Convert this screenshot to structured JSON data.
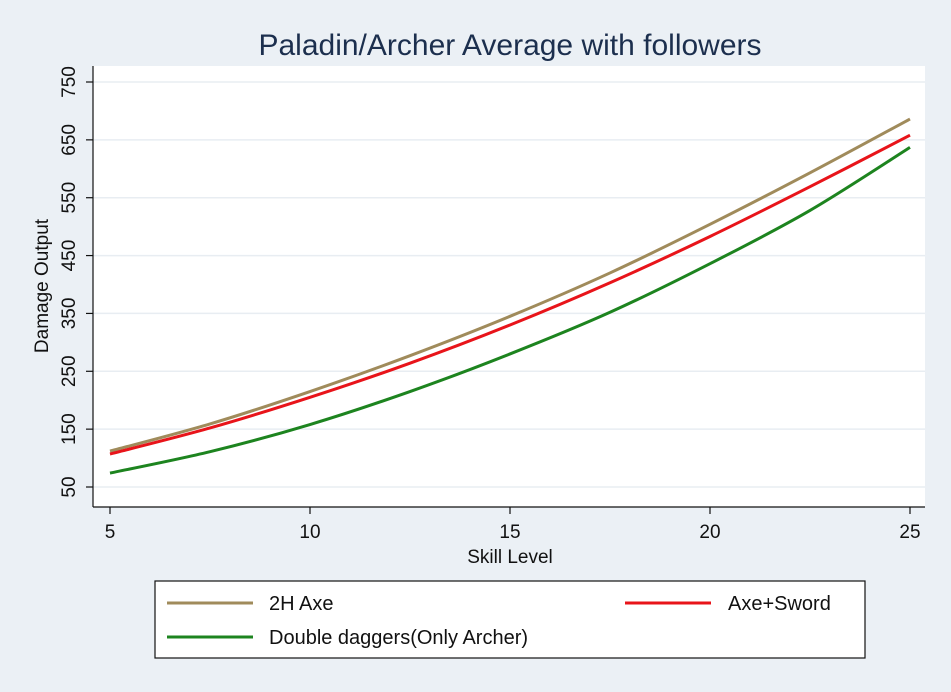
{
  "chart_data": {
    "type": "line",
    "title": "Paladin/Archer Average with followers",
    "xlabel": "Skill Level",
    "ylabel": "Damage Output",
    "xlim": [
      5,
      25
    ],
    "ylim": [
      50,
      750
    ],
    "xticks": [
      5,
      10,
      15,
      20,
      25
    ],
    "yticks": [
      50,
      150,
      250,
      350,
      450,
      550,
      650,
      750
    ],
    "grid": "horizontal",
    "legend_position": "bottom",
    "x": [
      5,
      7.5,
      10,
      12.5,
      15,
      17.5,
      20,
      22.5,
      25
    ],
    "series": [
      {
        "name": "2H Axe",
        "color": "#a08b5b",
        "values": [
          112,
          159,
          215,
          277,
          345,
          420,
          504,
          593,
          686
        ]
      },
      {
        "name": "Axe+Sword",
        "color": "#e8141a",
        "values": [
          107,
          152,
          205,
          264,
          330,
          403,
          483,
          569,
          658
        ]
      },
      {
        "name": "Double daggers(Only Archer)",
        "color": "#1d841f",
        "values": [
          74,
          111,
          158,
          215,
          280,
          352,
          436,
          528,
          637
        ]
      }
    ]
  }
}
